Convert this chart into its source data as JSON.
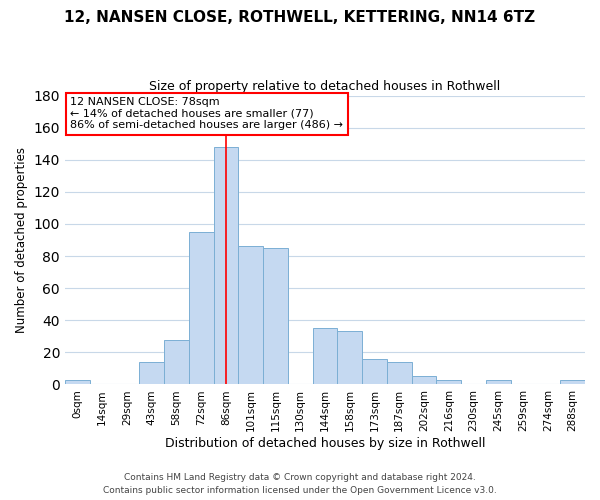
{
  "title_line1": "12, NANSEN CLOSE, ROTHWELL, KETTERING, NN14 6TZ",
  "title_line2": "Size of property relative to detached houses in Rothwell",
  "xlabel": "Distribution of detached houses by size in Rothwell",
  "ylabel": "Number of detached properties",
  "bar_labels": [
    "0sqm",
    "14sqm",
    "29sqm",
    "43sqm",
    "58sqm",
    "72sqm",
    "86sqm",
    "101sqm",
    "115sqm",
    "130sqm",
    "144sqm",
    "158sqm",
    "173sqm",
    "187sqm",
    "202sqm",
    "216sqm",
    "230sqm",
    "245sqm",
    "259sqm",
    "274sqm",
    "288sqm"
  ],
  "bar_values": [
    3,
    0,
    0,
    14,
    28,
    95,
    148,
    86,
    85,
    0,
    35,
    33,
    16,
    14,
    5,
    3,
    0,
    3,
    0,
    0,
    3
  ],
  "bar_color": "#c5d9f1",
  "bar_edge_color": "#7bafd4",
  "ylim": [
    0,
    180
  ],
  "yticks": [
    0,
    20,
    40,
    60,
    80,
    100,
    120,
    140,
    160,
    180
  ],
  "marker_label": "12 NANSEN CLOSE: 78sqm",
  "annotation_line1": "← 14% of detached houses are smaller (77)",
  "annotation_line2": "86% of semi-detached houses are larger (486) →",
  "vline_x": 6.0,
  "footer_line1": "Contains HM Land Registry data © Crown copyright and database right 2024.",
  "footer_line2": "Contains public sector information licensed under the Open Government Licence v3.0.",
  "background_color": "#ffffff",
  "grid_color": "#c8d8e8",
  "title_fontsize": 11,
  "subtitle_fontsize": 9,
  "ylabel_fontsize": 8.5,
  "xlabel_fontsize": 9,
  "tick_fontsize": 7.5,
  "annot_fontsize": 8,
  "footer_fontsize": 6.5
}
